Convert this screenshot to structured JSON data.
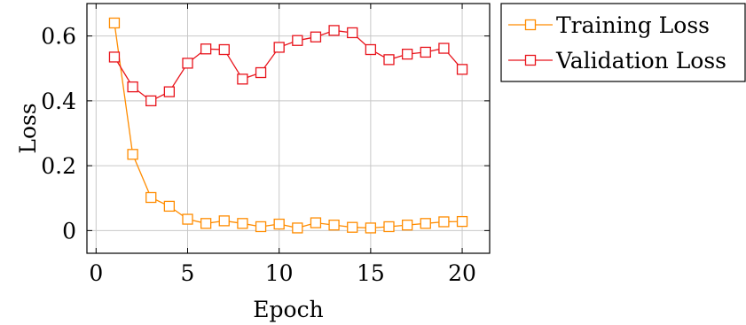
{
  "chart_data": {
    "type": "line",
    "title": "",
    "xlabel": "Epoch",
    "ylabel": "Loss",
    "xlim": [
      -0.5,
      21.5
    ],
    "ylim": [
      -0.07,
      0.7
    ],
    "xticks": [
      0,
      5,
      10,
      15,
      20
    ],
    "yticks": [
      0,
      0.2,
      0.4,
      0.6
    ],
    "xtick_labels": [
      "0",
      "5",
      "10",
      "15",
      "20"
    ],
    "ytick_labels": [
      "0",
      "0.2",
      "0.4",
      "0.6"
    ],
    "grid": true,
    "legend_position": "outside-top-right",
    "series": [
      {
        "name": "Training Loss",
        "color": "#ff8c00",
        "marker": "open-square",
        "x": [
          1,
          2,
          3,
          4,
          5,
          6,
          7,
          8,
          9,
          10,
          11,
          12,
          13,
          14,
          15,
          16,
          17,
          18,
          19,
          20
        ],
        "values": [
          0.64,
          0.235,
          0.102,
          0.075,
          0.035,
          0.022,
          0.03,
          0.022,
          0.012,
          0.02,
          0.008,
          0.024,
          0.017,
          0.01,
          0.008,
          0.012,
          0.017,
          0.022,
          0.027,
          0.028
        ]
      },
      {
        "name": "Validation Loss",
        "color": "#e8141c",
        "marker": "open-square",
        "x": [
          1,
          2,
          3,
          4,
          5,
          6,
          7,
          8,
          9,
          10,
          11,
          12,
          13,
          14,
          15,
          16,
          17,
          18,
          19,
          20
        ],
        "values": [
          0.535,
          0.443,
          0.4,
          0.428,
          0.516,
          0.56,
          0.558,
          0.467,
          0.487,
          0.565,
          0.586,
          0.597,
          0.617,
          0.61,
          0.558,
          0.527,
          0.544,
          0.55,
          0.562,
          0.497
        ]
      }
    ]
  }
}
